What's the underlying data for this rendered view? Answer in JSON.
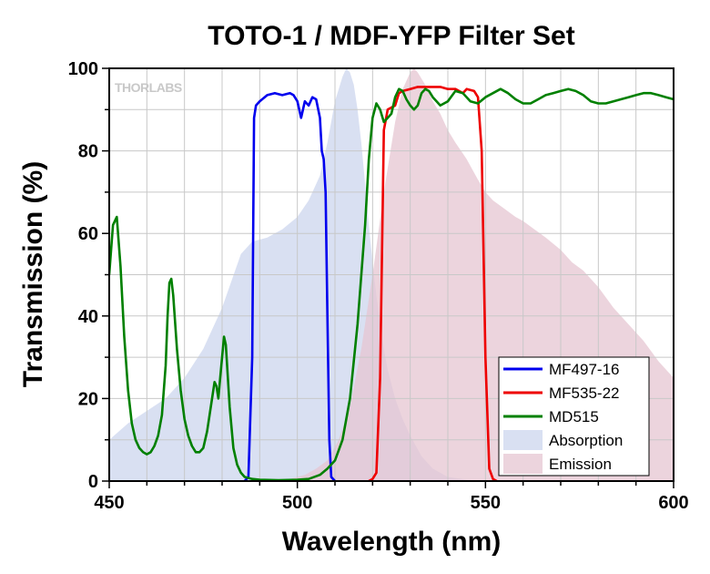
{
  "chart_data": {
    "type": "line",
    "title": "TOTO-1 / MDF-YFP Filter Set",
    "xlabel": "Wavelength (nm)",
    "ylabel": "Transmission (%)",
    "xlim": [
      450,
      600
    ],
    "ylim": [
      0,
      100
    ],
    "x_ticks": [
      450,
      500,
      550,
      600
    ],
    "y_ticks": [
      0,
      20,
      40,
      60,
      80,
      100
    ],
    "grid": true,
    "legend_position": "bottom-right",
    "watermark": "THORLABS",
    "series": [
      {
        "name": "MF497-16",
        "kind": "line",
        "color": "#0000ee",
        "points": [
          [
            486,
            0
          ],
          [
            487,
            1
          ],
          [
            488,
            30
          ],
          [
            488.5,
            88
          ],
          [
            489,
            91
          ],
          [
            490,
            92
          ],
          [
            492,
            93.5
          ],
          [
            494,
            94
          ],
          [
            496,
            93.5
          ],
          [
            498,
            94
          ],
          [
            499,
            93.5
          ],
          [
            500,
            92
          ],
          [
            501,
            88
          ],
          [
            502,
            92
          ],
          [
            503,
            91
          ],
          [
            504,
            93
          ],
          [
            505,
            92.5
          ],
          [
            506,
            88
          ],
          [
            506.5,
            80
          ],
          [
            507,
            78
          ],
          [
            507.5,
            70
          ],
          [
            508,
            40
          ],
          [
            508.5,
            10
          ],
          [
            509,
            1
          ],
          [
            510,
            0
          ]
        ]
      },
      {
        "name": "MF535-22",
        "kind": "line",
        "color": "#ee0000",
        "points": [
          [
            519,
            0
          ],
          [
            520,
            0.5
          ],
          [
            521,
            2
          ],
          [
            522,
            25
          ],
          [
            523,
            85
          ],
          [
            524,
            90
          ],
          [
            525,
            90.5
          ],
          [
            526,
            91
          ],
          [
            527,
            94
          ],
          [
            528,
            94.5
          ],
          [
            530,
            95
          ],
          [
            532,
            95.5
          ],
          [
            535,
            95.5
          ],
          [
            538,
            95.5
          ],
          [
            540,
            95
          ],
          [
            542,
            95
          ],
          [
            544,
            94
          ],
          [
            545,
            95
          ],
          [
            547,
            94.5
          ],
          [
            548,
            93
          ],
          [
            549,
            80
          ],
          [
            550,
            30
          ],
          [
            551,
            3
          ],
          [
            552,
            0.5
          ],
          [
            553,
            0
          ]
        ]
      },
      {
        "name": "MD515",
        "kind": "line",
        "color": "#008000",
        "points": [
          [
            450,
            50
          ],
          [
            451,
            62
          ],
          [
            452,
            64
          ],
          [
            453,
            52
          ],
          [
            454,
            35
          ],
          [
            455,
            22
          ],
          [
            456,
            14
          ],
          [
            457,
            10
          ],
          [
            458,
            8
          ],
          [
            459,
            7
          ],
          [
            460,
            6.5
          ],
          [
            461,
            7
          ],
          [
            462,
            8.5
          ],
          [
            463,
            11
          ],
          [
            464,
            16
          ],
          [
            465,
            28
          ],
          [
            465.5,
            40
          ],
          [
            466,
            48
          ],
          [
            466.5,
            49
          ],
          [
            467,
            45
          ],
          [
            468,
            32
          ],
          [
            469,
            22
          ],
          [
            470,
            15
          ],
          [
            471,
            11
          ],
          [
            472,
            8.5
          ],
          [
            473,
            7
          ],
          [
            474,
            7
          ],
          [
            475,
            8
          ],
          [
            476,
            12
          ],
          [
            477,
            18
          ],
          [
            478,
            24
          ],
          [
            478.5,
            23
          ],
          [
            479,
            20
          ],
          [
            479.5,
            25
          ],
          [
            480,
            30
          ],
          [
            480.5,
            35
          ],
          [
            481,
            33
          ],
          [
            482,
            18
          ],
          [
            483,
            8
          ],
          [
            484,
            4
          ],
          [
            485,
            2
          ],
          [
            486,
            1
          ],
          [
            488,
            0.5
          ],
          [
            490,
            0.3
          ],
          [
            495,
            0.2
          ],
          [
            500,
            0.3
          ],
          [
            503,
            0.5
          ],
          [
            506,
            1.5
          ],
          [
            508,
            3
          ],
          [
            510,
            5
          ],
          [
            512,
            10
          ],
          [
            514,
            20
          ],
          [
            516,
            38
          ],
          [
            518,
            62
          ],
          [
            519,
            78
          ],
          [
            520,
            88
          ],
          [
            521,
            91.5
          ],
          [
            522,
            90
          ],
          [
            523,
            87
          ],
          [
            524,
            88
          ],
          [
            525,
            89
          ],
          [
            526,
            93
          ],
          [
            527,
            95
          ],
          [
            528,
            94.5
          ],
          [
            529,
            92.5
          ],
          [
            530,
            91
          ],
          [
            531,
            90
          ],
          [
            532,
            91
          ],
          [
            533,
            94
          ],
          [
            534,
            95
          ],
          [
            535,
            94.5
          ],
          [
            536,
            93
          ],
          [
            538,
            91
          ],
          [
            540,
            92
          ],
          [
            542,
            94.5
          ],
          [
            544,
            94
          ],
          [
            546,
            92
          ],
          [
            548,
            91.5
          ],
          [
            550,
            93
          ],
          [
            552,
            94
          ],
          [
            554,
            95
          ],
          [
            556,
            94
          ],
          [
            558,
            92.5
          ],
          [
            560,
            91.5
          ],
          [
            562,
            91.5
          ],
          [
            564,
            92.5
          ],
          [
            566,
            93.5
          ],
          [
            568,
            94
          ],
          [
            570,
            94.5
          ],
          [
            572,
            95
          ],
          [
            574,
            94.5
          ],
          [
            576,
            93.5
          ],
          [
            578,
            92
          ],
          [
            580,
            91.5
          ],
          [
            582,
            91.5
          ],
          [
            584,
            92
          ],
          [
            586,
            92.5
          ],
          [
            588,
            93
          ],
          [
            590,
            93.5
          ],
          [
            592,
            94
          ],
          [
            594,
            94
          ],
          [
            596,
            93.5
          ],
          [
            598,
            93
          ],
          [
            600,
            92.5
          ]
        ]
      },
      {
        "name": "Absorption",
        "kind": "area",
        "color": "#ccd5ee",
        "points": [
          [
            450,
            10
          ],
          [
            455,
            14
          ],
          [
            460,
            17
          ],
          [
            465,
            20
          ],
          [
            470,
            25
          ],
          [
            475,
            32
          ],
          [
            480,
            42
          ],
          [
            485,
            55
          ],
          [
            488,
            58
          ],
          [
            492,
            59
          ],
          [
            496,
            61
          ],
          [
            500,
            64
          ],
          [
            503,
            68
          ],
          [
            506,
            74
          ],
          [
            508,
            82
          ],
          [
            510,
            92
          ],
          [
            512,
            98
          ],
          [
            513,
            100
          ],
          [
            514,
            99
          ],
          [
            515,
            96
          ],
          [
            516,
            90
          ],
          [
            517,
            82
          ],
          [
            518,
            72
          ],
          [
            519,
            62
          ],
          [
            520,
            53
          ],
          [
            521,
            45
          ],
          [
            522,
            38
          ],
          [
            523,
            32
          ],
          [
            524,
            27
          ],
          [
            526,
            20
          ],
          [
            528,
            15
          ],
          [
            530,
            11
          ],
          [
            533,
            6
          ],
          [
            536,
            3
          ],
          [
            540,
            1
          ],
          [
            545,
            0.3
          ],
          [
            550,
            0
          ]
        ]
      },
      {
        "name": "Emission",
        "kind": "area",
        "color": "#e5c5d2",
        "points": [
          [
            495,
            0
          ],
          [
            498,
            0.5
          ],
          [
            502,
            1.5
          ],
          [
            505,
            3
          ],
          [
            508,
            5
          ],
          [
            511,
            10
          ],
          [
            514,
            18
          ],
          [
            517,
            32
          ],
          [
            520,
            50
          ],
          [
            523,
            70
          ],
          [
            526,
            87
          ],
          [
            528,
            95
          ],
          [
            530,
            99
          ],
          [
            531,
            100
          ],
          [
            532,
            99
          ],
          [
            534,
            96
          ],
          [
            536,
            92
          ],
          [
            538,
            89
          ],
          [
            540,
            85
          ],
          [
            542,
            82
          ],
          [
            545,
            78
          ],
          [
            548,
            73
          ],
          [
            550,
            70
          ],
          [
            552,
            68
          ],
          [
            555,
            66
          ],
          [
            558,
            64
          ],
          [
            560,
            63
          ],
          [
            563,
            61
          ],
          [
            566,
            59
          ],
          [
            570,
            56
          ],
          [
            573,
            53
          ],
          [
            576,
            51
          ],
          [
            580,
            47
          ],
          [
            584,
            42
          ],
          [
            588,
            38
          ],
          [
            592,
            34
          ],
          [
            596,
            29
          ],
          [
            600,
            25
          ]
        ]
      }
    ]
  }
}
